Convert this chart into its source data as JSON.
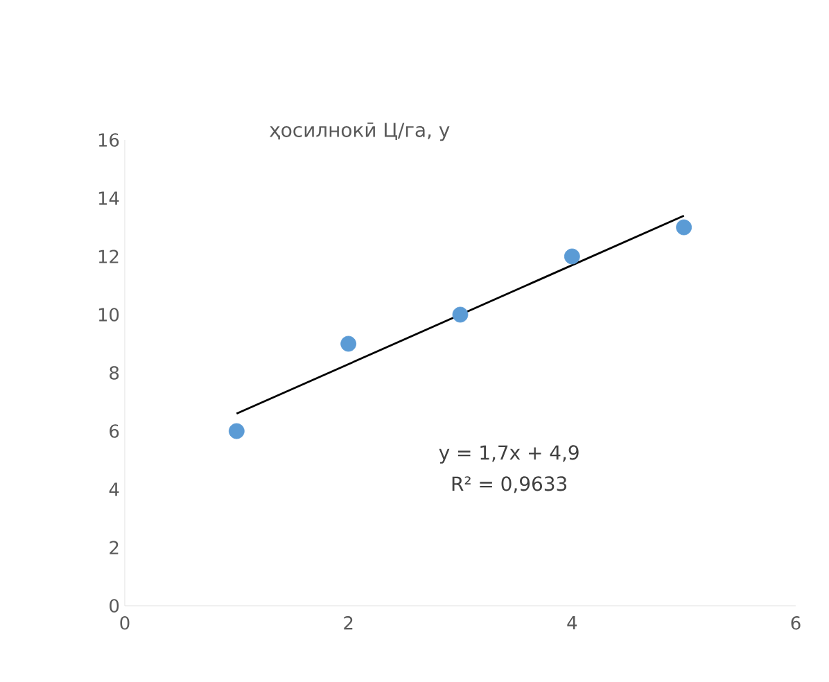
{
  "chart_data": {
    "type": "scatter",
    "title": "ҳосилнокӣ Ц/га, у",
    "x": [
      1,
      2,
      3,
      4,
      5
    ],
    "series": [
      {
        "color": "#5b9bd5",
        "marker": "circle",
        "values": [
          6,
          9,
          10,
          12,
          13
        ]
      },
      {
        "type": "line",
        "color": "#000000",
        "marker": "none",
        "x": [
          1,
          5
        ],
        "values": [
          6.6,
          13.4
        ]
      }
    ],
    "xlim": [
      0,
      6
    ],
    "ylim": [
      0,
      16
    ],
    "xticks": [
      0,
      2,
      4,
      6
    ],
    "yticks": [
      0,
      2,
      4,
      6,
      8,
      10,
      12,
      14,
      16
    ],
    "line_style": "solid",
    "annotations": [
      "y = 1,7x + 4,9",
      "R² = 0,9633"
    ]
  }
}
